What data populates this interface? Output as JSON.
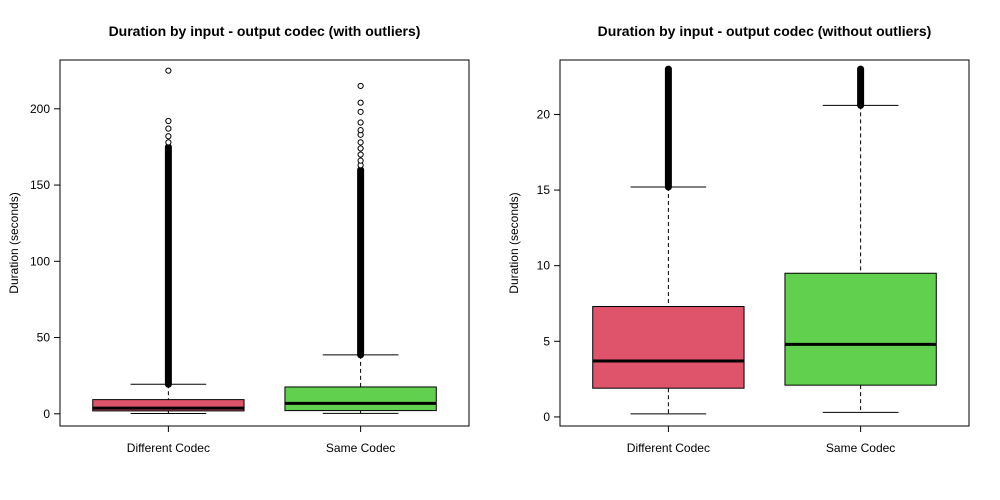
{
  "chart_data": [
    {
      "type": "box",
      "title": "Duration by input - output codec (with outliers)",
      "xlabel": "",
      "ylabel": "Duration (seconds)",
      "ylim": [
        -8,
        232
      ],
      "yticks": [
        0,
        50,
        100,
        150,
        200
      ],
      "categories": [
        "Different Codec",
        "Same Codec"
      ],
      "colors": [
        "#df536b",
        "#61d04f"
      ],
      "boxes": [
        {
          "whisker_low": 0.2,
          "q1": 1.9,
          "median": 3.7,
          "q3": 9.3,
          "whisker_high": 19.4,
          "outlier_range": [
            19.4,
            175
          ],
          "outliers": [
            178,
            182,
            187,
            192,
            225
          ]
        },
        {
          "whisker_low": 0.3,
          "q1": 2.1,
          "median": 6.8,
          "q3": 17.6,
          "whisker_high": 38.6,
          "outlier_range": [
            38.6,
            160
          ],
          "outliers": [
            163,
            166,
            170,
            174,
            178,
            183,
            186,
            191,
            198,
            204,
            215
          ]
        }
      ],
      "grid": false
    },
    {
      "type": "box",
      "title": "Duration by input - output codec (without outliers)",
      "xlabel": "",
      "ylabel": "Duration (seconds)",
      "ylim": [
        -0.6,
        23.6
      ],
      "yticks": [
        0,
        5,
        10,
        15,
        20
      ],
      "categories": [
        "Different Codec",
        "Same Codec"
      ],
      "colors": [
        "#df536b",
        "#61d04f"
      ],
      "boxes": [
        {
          "whisker_low": 0.2,
          "q1": 1.9,
          "median": 3.7,
          "q3": 7.3,
          "whisker_high": 15.2,
          "outlier_range": [
            15.2,
            23
          ]
        },
        {
          "whisker_low": 0.3,
          "q1": 2.1,
          "median": 4.8,
          "q3": 9.5,
          "whisker_high": 20.6,
          "outlier_range": [
            20.6,
            23
          ]
        }
      ],
      "grid": false
    }
  ]
}
